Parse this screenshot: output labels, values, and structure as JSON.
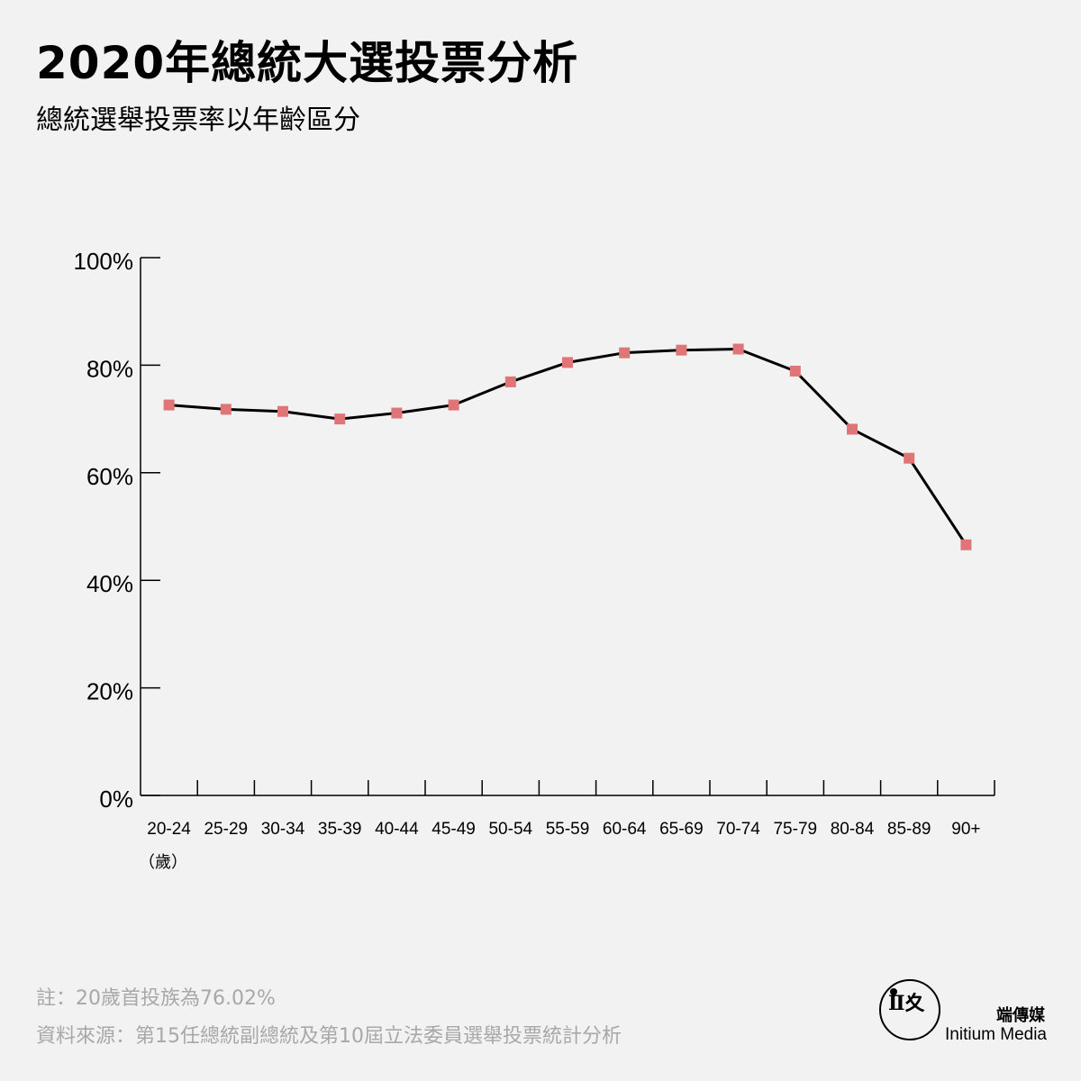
{
  "header": {
    "title": "2020年總統大選投票分析",
    "subtitle": "總統選舉投票率以年齡區分"
  },
  "chart_data": {
    "type": "line",
    "categories": [
      "20-24",
      "25-29",
      "30-34",
      "35-39",
      "40-44",
      "45-49",
      "50-54",
      "55-59",
      "60-64",
      "65-69",
      "70-74",
      "75-79",
      "80-84",
      "85-89",
      "90+"
    ],
    "x_unit_label": "（歲）",
    "values": [
      72.6,
      71.8,
      71.4,
      70.0,
      71.1,
      72.6,
      76.9,
      80.5,
      82.3,
      82.8,
      83.0,
      78.9,
      68.1,
      62.7,
      46.6
    ],
    "yticks": [
      "0%",
      "20%",
      "40%",
      "60%",
      "80%",
      "100%"
    ],
    "ylim": [
      0,
      100
    ],
    "line_color": "#000000",
    "marker_color": "#e07578",
    "grid": false
  },
  "footer": {
    "note": "註：20歲首投族為76.02%",
    "source": "資料來源：第15任總統副總統及第10屆立法委員選舉投票統計分析"
  },
  "brand": {
    "name_cn": "端傳媒",
    "name_en": "Initium Media"
  }
}
